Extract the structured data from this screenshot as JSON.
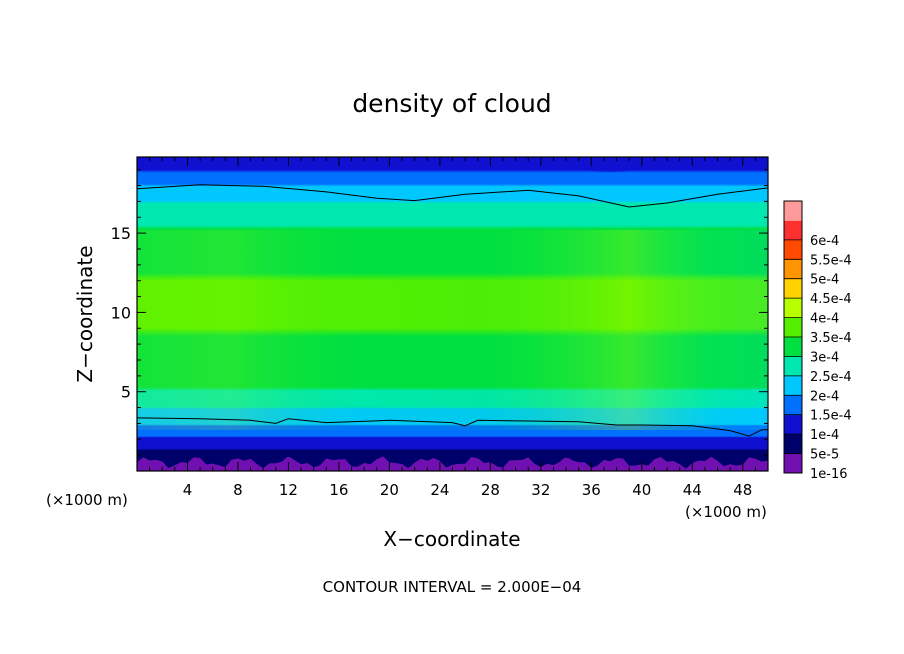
{
  "chart_data": {
    "type": "heatmap",
    "title": "density of cloud",
    "xlabel": "X−coordinate",
    "ylabel": "Z−coordinate",
    "x_unit_left": "(×1000 m)",
    "x_unit_right": "(×1000 m)",
    "footer": "CONTOUR INTERVAL = 2.000E−04",
    "xlim": [
      0,
      50
    ],
    "ylim": [
      0,
      19.8
    ],
    "x_ticks": [
      4,
      8,
      12,
      16,
      20,
      24,
      28,
      32,
      36,
      40,
      44,
      48
    ],
    "y_ticks": [
      5,
      10,
      15
    ],
    "colorbar": {
      "labels": [
        "6e-4",
        "5.5e-4",
        "5e-4",
        "4.5e-4",
        "4e-4",
        "3.5e-4",
        "3e-4",
        "2.5e-4",
        "2e-4",
        "1.5e-4",
        "1e-4",
        "5e-5",
        "1e-16"
      ],
      "colors": [
        "#ff9a9a",
        "#ff3030",
        "#ff4a00",
        "#ff9500",
        "#ffd200",
        "#b8ff00",
        "#55f000",
        "#00e040",
        "#00e8b0",
        "#00c8ff",
        "#0070ff",
        "#1010d0",
        "#00006a",
        "#7010b0"
      ]
    },
    "profile": {
      "z": [
        0,
        0.4,
        0.9,
        1.3,
        2,
        2.6,
        3.3,
        4.2,
        5.5,
        7,
        10,
        13,
        15,
        16.5,
        17.6,
        18.6,
        19.8
      ],
      "density": [
        3e-05,
        2e-05,
        4.5e-05,
        9e-05,
        0.00013,
        0.00017,
        0.0002,
        0.000245,
        0.000285,
        0.000315,
        0.00033,
        0.00032,
        0.00029,
        0.00025,
        0.000205,
        0.00015,
        0.0001
      ]
    },
    "contours": [
      {
        "level": "2.000E-04",
        "points": [
          [
            0,
            17.8
          ],
          [
            5,
            18.05
          ],
          [
            10,
            17.95
          ],
          [
            15,
            17.6
          ],
          [
            19,
            17.2
          ],
          [
            22,
            17.05
          ],
          [
            26,
            17.45
          ],
          [
            31,
            17.7
          ],
          [
            35,
            17.35
          ],
          [
            39,
            16.65
          ],
          [
            42,
            16.9
          ],
          [
            46,
            17.45
          ],
          [
            50,
            17.85
          ]
        ]
      },
      {
        "level": "2.000E-04",
        "points": [
          [
            0,
            3.35
          ],
          [
            5,
            3.3
          ],
          [
            9,
            3.2
          ],
          [
            11,
            3.0
          ],
          [
            12,
            3.3
          ],
          [
            15,
            3.05
          ],
          [
            20,
            3.2
          ],
          [
            25,
            3.05
          ],
          [
            26,
            2.85
          ],
          [
            27,
            3.2
          ],
          [
            31,
            3.15
          ],
          [
            35,
            3.1
          ],
          [
            38,
            2.9
          ],
          [
            40,
            2.9
          ],
          [
            44,
            2.85
          ],
          [
            47,
            2.55
          ],
          [
            48.5,
            2.2
          ],
          [
            49.5,
            2.6
          ],
          [
            50,
            2.6
          ]
        ]
      }
    ]
  }
}
